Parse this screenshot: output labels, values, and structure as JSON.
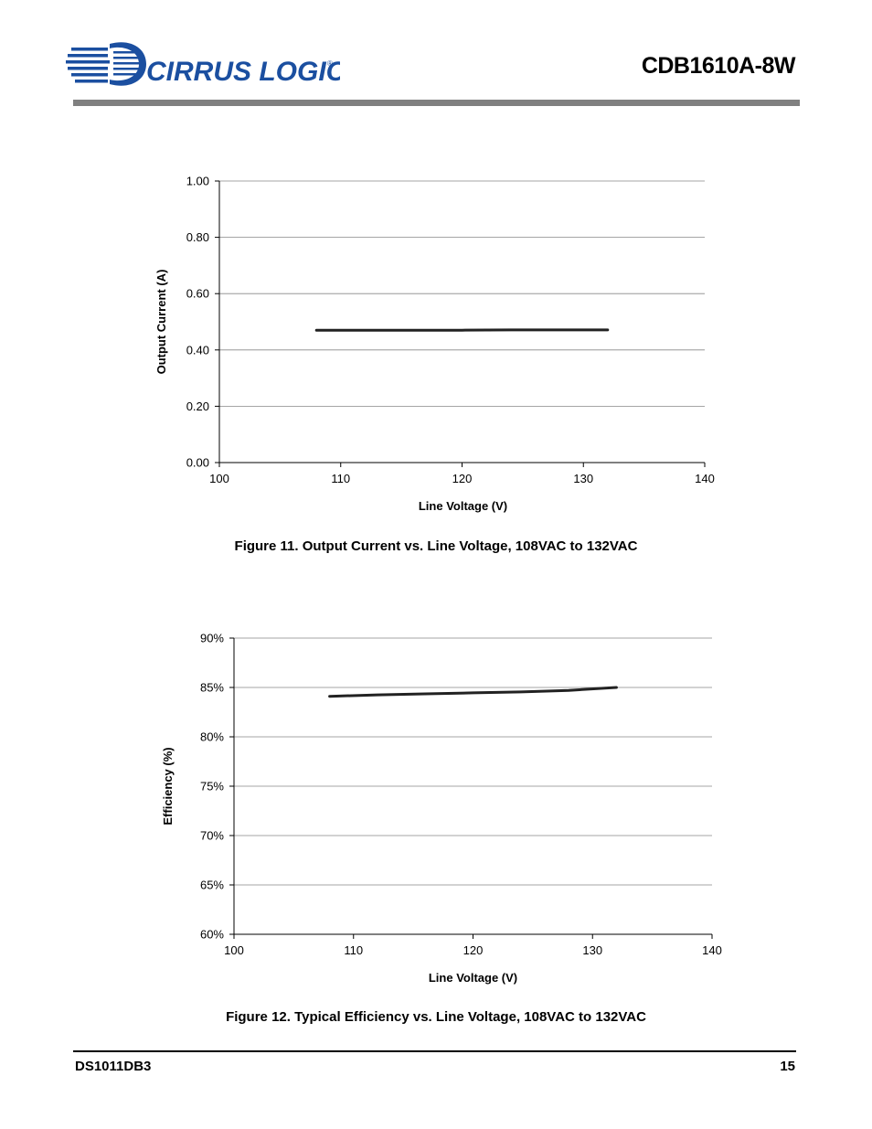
{
  "header": {
    "brand": "CIRRUS LOGIC",
    "registered_mark": "®",
    "doc_title": "CDB1610A-8W",
    "brand_color": "#1b4fa0"
  },
  "figures": [
    {
      "caption": "Figure 11.  Output Current vs. Line Voltage, 108VAC to 132VAC"
    },
    {
      "caption": "Figure 12.  Typical Efficiency vs. Line Voltage, 108VAC to 132VAC"
    }
  ],
  "chart_data": [
    {
      "type": "line",
      "xlabel": "Line Voltage (V)",
      "ylabel": "Output Current (A)",
      "xlim": [
        100,
        140
      ],
      "ylim": [
        0,
        1
      ],
      "x_ticks": [
        "100",
        "110",
        "120",
        "130",
        "140"
      ],
      "y_ticks": [
        "0.00",
        "0.20",
        "0.40",
        "0.60",
        "0.80",
        "1.00"
      ],
      "grid": "horizontal",
      "series": [
        {
          "x": [
            108,
            112,
            116,
            120,
            124,
            128,
            132
          ],
          "y": [
            0.47,
            0.47,
            0.47,
            0.47,
            0.471,
            0.471,
            0.471
          ]
        }
      ]
    },
    {
      "type": "line",
      "xlabel": "Line Voltage (V)",
      "ylabel": "Efficiency (%)",
      "xlim": [
        100,
        140
      ],
      "ylim": [
        60,
        90
      ],
      "x_ticks": [
        "100",
        "110",
        "120",
        "130",
        "140"
      ],
      "y_ticks": [
        "60%",
        "65%",
        "70%",
        "75%",
        "80%",
        "85%",
        "90%"
      ],
      "grid": "horizontal",
      "series": [
        {
          "x": [
            108,
            112,
            116,
            120,
            124,
            128,
            132
          ],
          "y": [
            84.1,
            84.25,
            84.35,
            84.45,
            84.55,
            84.7,
            85.0
          ]
        }
      ]
    }
  ],
  "footer": {
    "doc_id": "DS1011DB3",
    "page_number": "15"
  }
}
